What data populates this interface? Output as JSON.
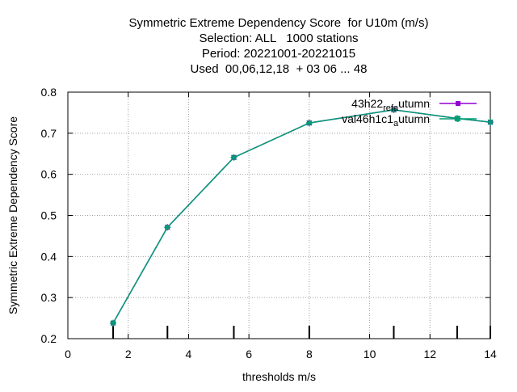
{
  "chart_data": {
    "type": "line",
    "title_lines": [
      "Symmetric Extreme Dependency Score  for U10m (m/s)",
      "Selection: ALL   1000 stations",
      "Period: 20221001-20221015",
      "Used  00,06,12,18  + 03 06 ... 48"
    ],
    "xlabel": "thresholds m/s",
    "ylabel": "Symmetric Extreme Dependency Score",
    "xlim": [
      0,
      14
    ],
    "ylim": [
      0.2,
      0.8
    ],
    "x_ticks": [
      "0",
      "2",
      "4",
      "6",
      "8",
      "10",
      "12",
      "14"
    ],
    "y_ticks": [
      "0.2",
      "0.3",
      "0.4",
      "0.5",
      "0.6",
      "0.7",
      "0.8"
    ],
    "grid": true,
    "legend_position": "top-right",
    "threshold_markers": [
      1.5,
      3.3,
      5.5,
      8.0,
      10.8,
      12.9,
      14.0
    ],
    "series": [
      {
        "name": "43h22_ref_autumn",
        "legend_main": "43h22",
        "legend_sub1": "ref",
        "legend_mid": "a",
        "legend_tail": "utumn",
        "color": "#9400d3",
        "x": [
          1.5,
          3.3,
          5.5,
          8.0,
          10.8,
          12.9,
          14.0
        ],
        "y": [
          0.238,
          0.471,
          0.641,
          0.725,
          0.757,
          0.736,
          0.727
        ]
      },
      {
        "name": "val46h1c1_autumn",
        "legend_main": "val46h1c1",
        "legend_sub1": "",
        "legend_mid": "a",
        "legend_tail": "utumn",
        "color": "#009e73",
        "x": [
          1.5,
          3.3,
          5.5,
          8.0,
          10.8,
          12.9,
          14.0
        ],
        "y": [
          0.238,
          0.471,
          0.641,
          0.725,
          0.757,
          0.736,
          0.727
        ]
      }
    ]
  }
}
